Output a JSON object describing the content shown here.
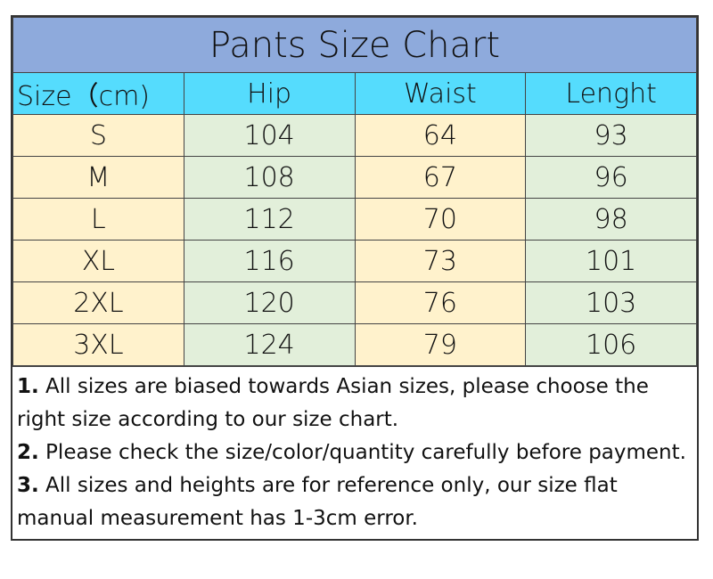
{
  "title": "Pants Size Chart",
  "headers": [
    "Size（cm)",
    "Hip",
    "Waist",
    "Lenght"
  ],
  "rows": [
    [
      "S",
      "104",
      "64",
      "93"
    ],
    [
      "M",
      "108",
      "67",
      "96"
    ],
    [
      "L",
      "112",
      "70",
      "98"
    ],
    [
      "XL",
      "116",
      "73",
      "101"
    ],
    [
      "2XL",
      "120",
      "76",
      "103"
    ],
    [
      "3XL",
      "124",
      "79",
      "106"
    ]
  ],
  "notes": [
    {
      "num": "1.",
      "text": " All sizes are biased towards Asian sizes, please choose the right size according to our size chart."
    },
    {
      "num": "2.",
      "text": " Please check the size/color/quantity carefully before payment."
    },
    {
      "num": "3.",
      "text": " All sizes and heights are for reference only, our size flat manual measurement has 1-3cm error."
    }
  ],
  "colors": {
    "title_bg": "#8eaadc",
    "header_bg": "#55dcfd",
    "size_col": "#fff2cc",
    "hip_col": "#e2efda",
    "waist_col": "#fff2cc",
    "length_col": "#e2efda"
  }
}
